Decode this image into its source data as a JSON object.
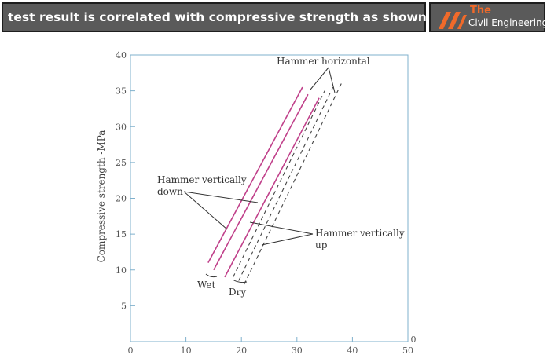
{
  "banner": {
    "text": "test result is correlated with compressive strength as shown in the graph",
    "logo_the": "The",
    "logo_name": "Civil Engineering",
    "logo_icon": "engineering-logo-icon"
  },
  "chart_data": {
    "type": "line",
    "title": "",
    "xlabel": "",
    "ylabel": "Compressive strength -MPa",
    "xlim": [
      0,
      50
    ],
    "ylim": [
      0,
      40
    ],
    "x_ticks": [
      0,
      10,
      20,
      30,
      40,
      50
    ],
    "y_ticks": [
      5,
      10,
      15,
      20,
      25,
      30,
      35,
      40
    ],
    "x_extra_label": "0",
    "grid": false,
    "colors": {
      "wet": "#c0408a",
      "dry": "#444444",
      "axis": "#7fb0cc"
    },
    "series": [
      {
        "group": "Wet",
        "style": "solid",
        "x": [
          14,
          31
        ],
        "y": [
          11,
          35.5
        ]
      },
      {
        "group": "Wet",
        "style": "solid",
        "x": [
          15,
          32
        ],
        "y": [
          10,
          34.5
        ]
      },
      {
        "group": "Wet",
        "style": "solid",
        "x": [
          17,
          34
        ],
        "y": [
          9,
          34
        ]
      },
      {
        "group": "Dry",
        "style": "dashed",
        "x": [
          18.5,
          35
        ],
        "y": [
          9,
          35
        ]
      },
      {
        "group": "Dry",
        "style": "dashed",
        "x": [
          19.5,
          36.5
        ],
        "y": [
          8.5,
          35.5
        ]
      },
      {
        "group": "Dry",
        "style": "dashed",
        "x": [
          20.5,
          38
        ],
        "y": [
          8,
          36
        ]
      }
    ],
    "annotations": {
      "hammer_horizontal": "Hammer horizontal",
      "hammer_vertically_down": [
        "Hammer vertically",
        "down"
      ],
      "hammer_vertically_up": [
        "Hammer vertically",
        "up"
      ],
      "wet": "Wet",
      "dry": "Dry"
    }
  }
}
